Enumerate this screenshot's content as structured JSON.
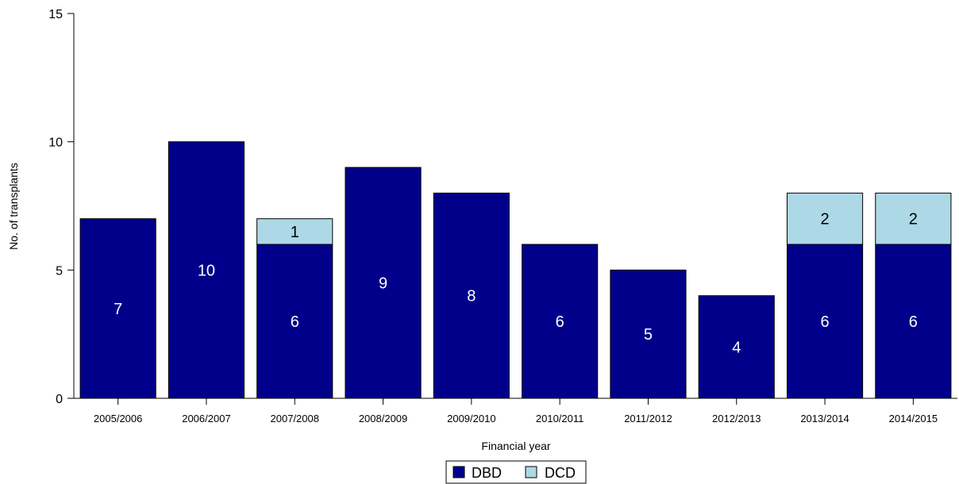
{
  "chart_data": {
    "type": "bar",
    "stacked": true,
    "title": "",
    "xlabel": "Financial year",
    "ylabel": "No. of transplants",
    "ylim": [
      0,
      15
    ],
    "yticks": [
      0,
      5,
      10,
      15
    ],
    "grid": false,
    "legend_position": "bottom",
    "categories": [
      "2005/2006",
      "2006/2007",
      "2007/2008",
      "2008/2009",
      "2009/2010",
      "2010/2011",
      "2011/2012",
      "2012/2013",
      "2013/2014",
      "2014/2015"
    ],
    "series": [
      {
        "name": "DBD",
        "color": "#00008b",
        "label_color": "#ffffff",
        "values": [
          7,
          10,
          6,
          9,
          8,
          6,
          5,
          4,
          6,
          6
        ]
      },
      {
        "name": "DCD",
        "color": "#add8e6",
        "label_color": "#000000",
        "values": [
          0,
          0,
          1,
          0,
          0,
          0,
          0,
          0,
          2,
          2
        ]
      }
    ]
  }
}
